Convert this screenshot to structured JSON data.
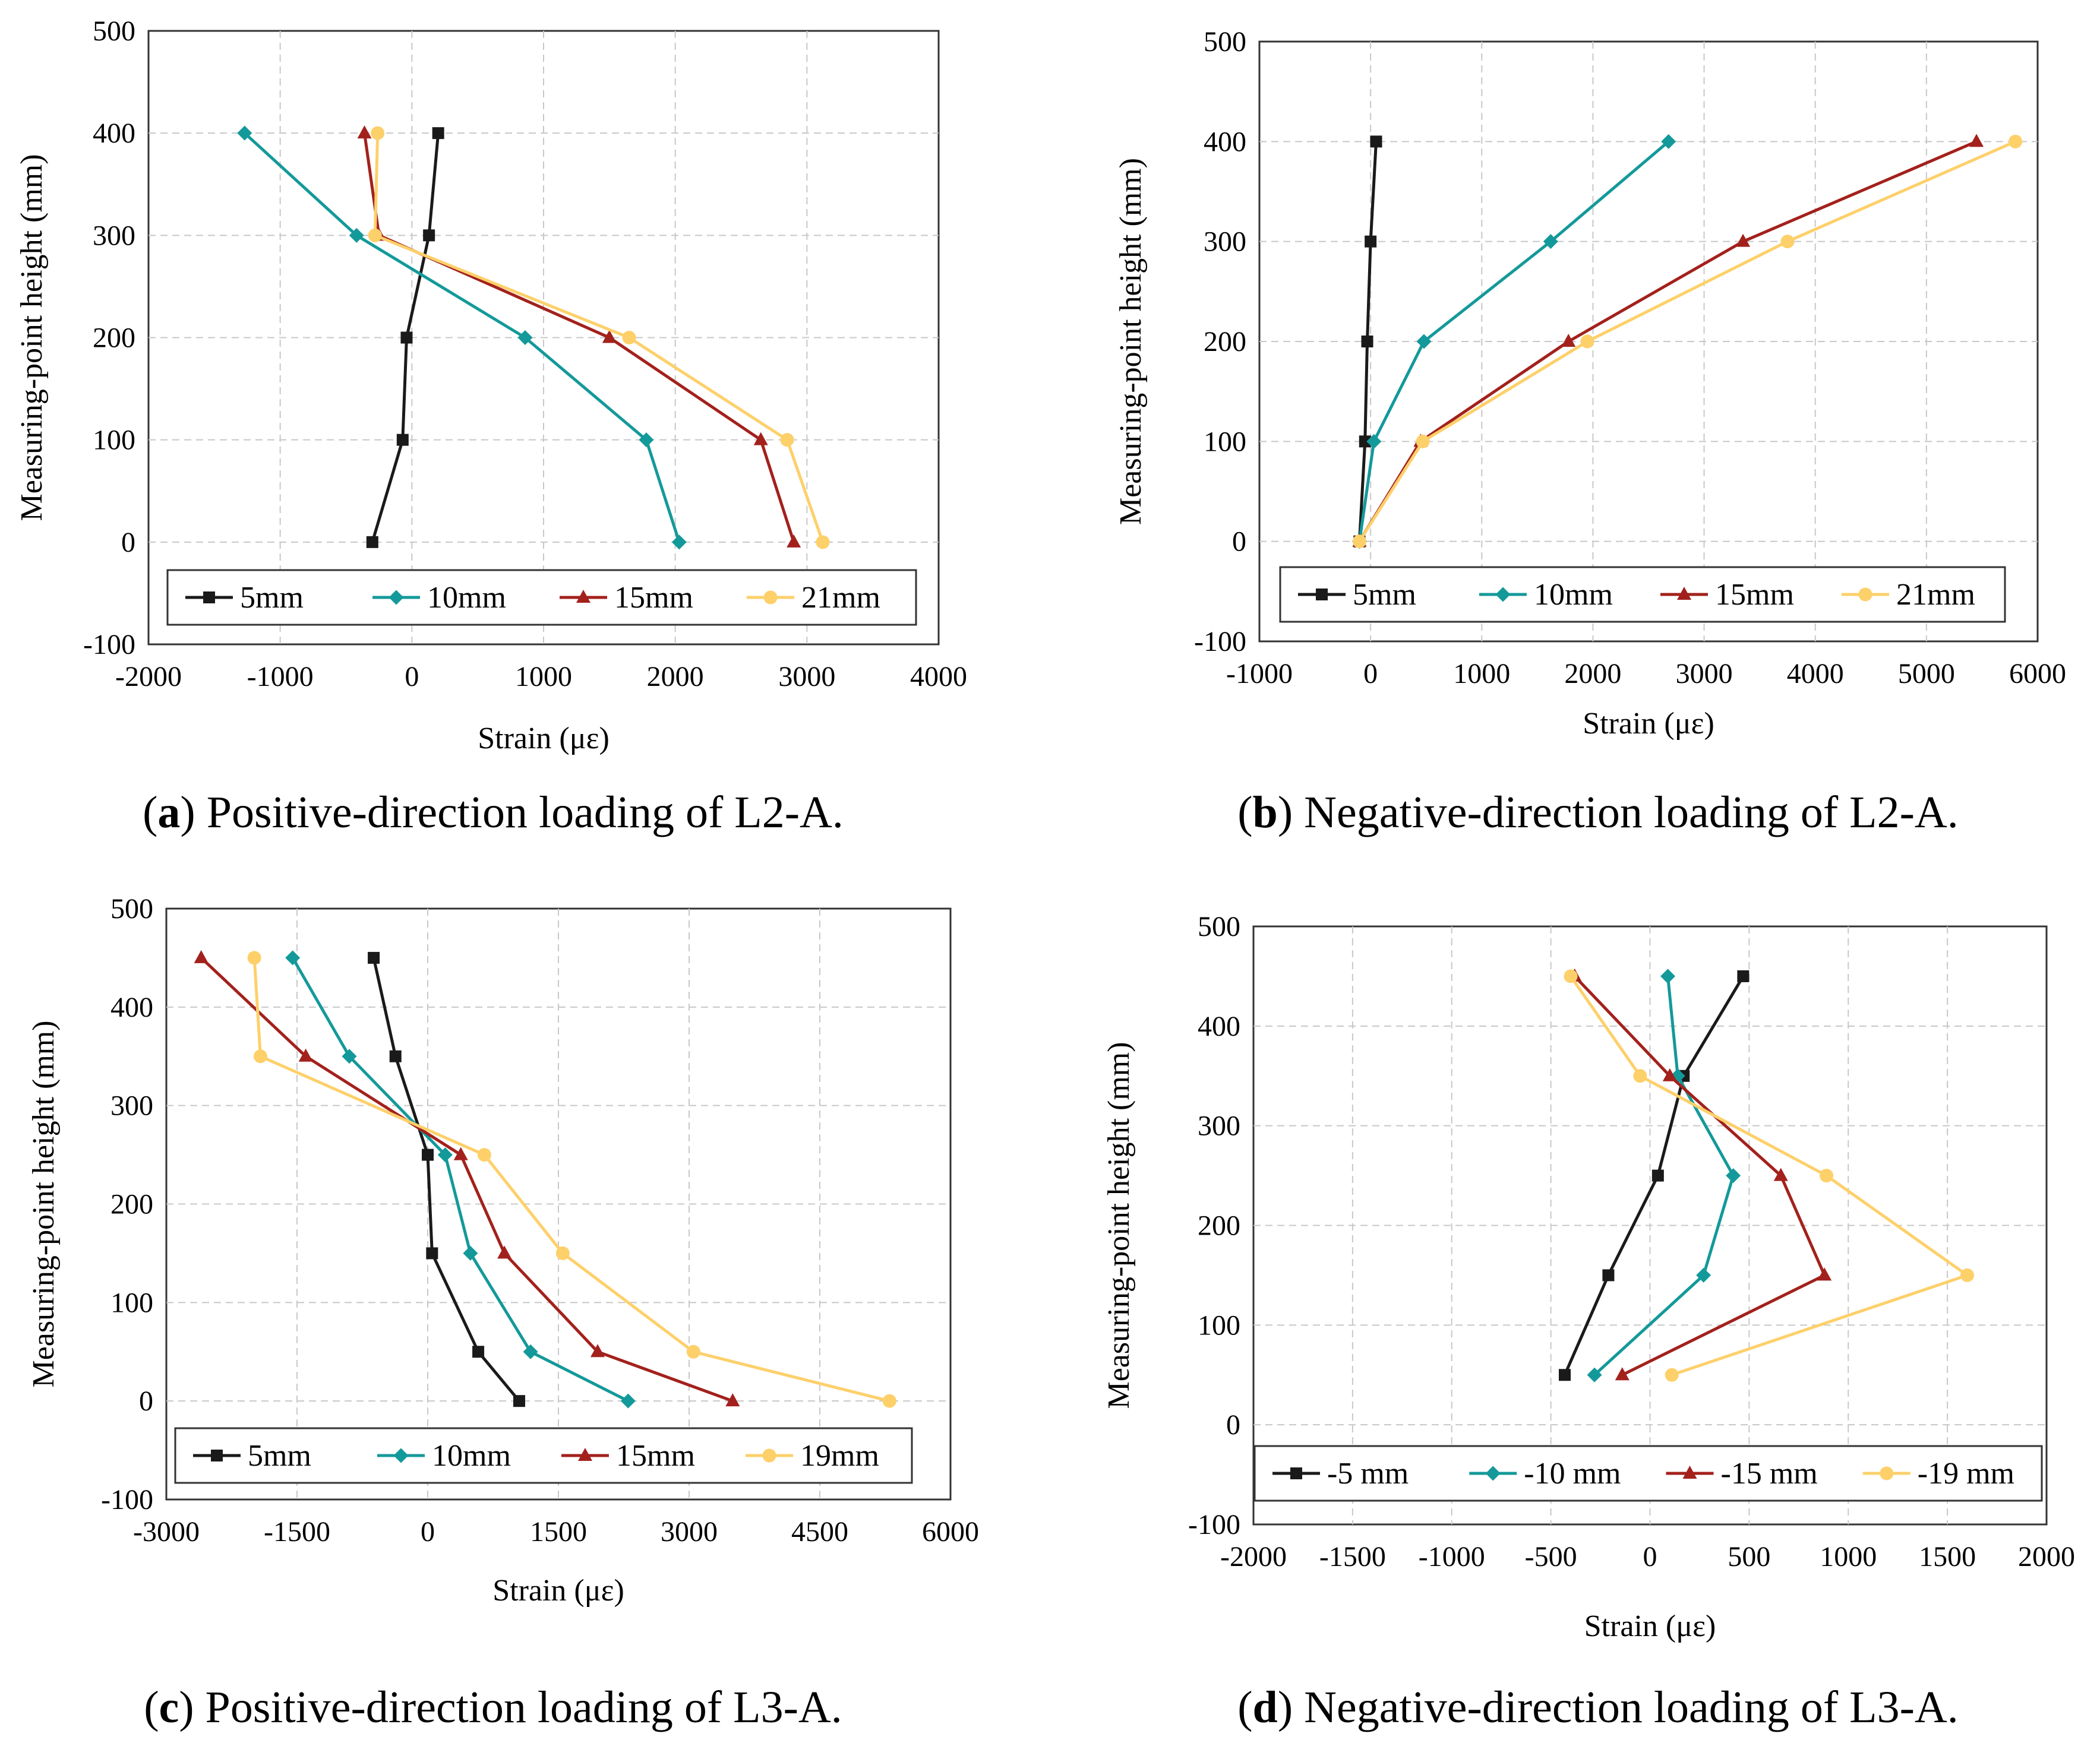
{
  "figure": {
    "panels": [
      {
        "letter": "a",
        "caption_text": "Positive-direction loading of L2-A."
      },
      {
        "letter": "b",
        "caption_text": "Negative-direction loading of L2-A."
      },
      {
        "letter": "c",
        "caption_text": "Positive-direction loading of L3-A."
      },
      {
        "letter": "d",
        "caption_text": "Negative-direction loading of L3-A."
      }
    ]
  },
  "colors": {
    "black": "#1a1a1a",
    "teal": "#14999a",
    "red": "#a3211c",
    "yellow": "#fdd06a"
  },
  "chart_data": [
    {
      "type": "line",
      "title": "",
      "xlabel": "Strain (με)",
      "ylabel": "Measuring-point height (mm)",
      "xlim": [
        -2000,
        4000
      ],
      "ylim": [
        -100,
        500
      ],
      "xticks": [
        -2000,
        -1000,
        0,
        1000,
        2000,
        3000,
        4000
      ],
      "yticks": [
        -100,
        0,
        100,
        200,
        300,
        400,
        500
      ],
      "grid": true,
      "legend_position": "bottom",
      "legend_columns": 4,
      "series": [
        {
          "name": "5mm",
          "color": "#1a1a1a",
          "marker": "square",
          "points": [
            [
              -300,
              0
            ],
            [
              -70,
              100
            ],
            [
              -40,
              200
            ],
            [
              130,
              300
            ],
            [
              200,
              400
            ]
          ]
        },
        {
          "name": "10mm",
          "color": "#14999a",
          "marker": "diamond",
          "points": [
            [
              2030,
              0
            ],
            [
              1780,
              100
            ],
            [
              860,
              200
            ],
            [
              -420,
              300
            ],
            [
              -1270,
              400
            ]
          ]
        },
        {
          "name": "15mm",
          "color": "#a3211c",
          "marker": "triangle",
          "points": [
            [
              2900,
              0
            ],
            [
              2650,
              100
            ],
            [
              1500,
              200
            ],
            [
              -250,
              300
            ],
            [
              -360,
              400
            ]
          ]
        },
        {
          "name": "21mm",
          "color": "#fdd06a",
          "marker": "circle",
          "points": [
            [
              3120,
              0
            ],
            [
              2850,
              100
            ],
            [
              1650,
              200
            ],
            [
              -280,
              300
            ],
            [
              -260,
              400
            ]
          ]
        }
      ]
    },
    {
      "type": "line",
      "title": "",
      "xlabel": "Strain (με)",
      "ylabel": "Measuring-point height (mm)",
      "xlim": [
        -1000,
        6000
      ],
      "ylim": [
        -100,
        500
      ],
      "xticks": [
        -1000,
        0,
        1000,
        2000,
        3000,
        4000,
        5000,
        6000
      ],
      "yticks": [
        -100,
        0,
        100,
        200,
        300,
        400,
        500
      ],
      "grid": true,
      "legend_position": "bottom",
      "legend_columns": 4,
      "series": [
        {
          "name": "5mm",
          "color": "#1a1a1a",
          "marker": "square",
          "points": [
            [
              -100,
              0
            ],
            [
              -50,
              100
            ],
            [
              -30,
              200
            ],
            [
              0,
              300
            ],
            [
              50,
              400
            ]
          ]
        },
        {
          "name": "10mm",
          "color": "#14999a",
          "marker": "diamond",
          "points": [
            [
              -100,
              0
            ],
            [
              30,
              100
            ],
            [
              480,
              200
            ],
            [
              1620,
              300
            ],
            [
              2680,
              400
            ]
          ]
        },
        {
          "name": "15mm",
          "color": "#a3211c",
          "marker": "triangle",
          "points": [
            [
              -100,
              0
            ],
            [
              450,
              100
            ],
            [
              1780,
              200
            ],
            [
              3350,
              300
            ],
            [
              5450,
              400
            ]
          ]
        },
        {
          "name": "21mm",
          "color": "#fdd06a",
          "marker": "circle",
          "points": [
            [
              -100,
              0
            ],
            [
              470,
              100
            ],
            [
              1950,
              200
            ],
            [
              3750,
              300
            ],
            [
              5800,
              400
            ]
          ]
        }
      ]
    },
    {
      "type": "line",
      "title": "",
      "xlabel": "Strain (με)",
      "ylabel": "Measuring-point height (mm)",
      "xlim": [
        -3000,
        6000
      ],
      "ylim": [
        -100,
        500
      ],
      "xticks": [
        -3000,
        -1500,
        0,
        1500,
        3000,
        4500,
        6000
      ],
      "yticks": [
        -100,
        0,
        100,
        200,
        300,
        400,
        500
      ],
      "grid": true,
      "legend_position": "bottom",
      "legend_columns": 4,
      "series": [
        {
          "name": "5mm",
          "color": "#1a1a1a",
          "marker": "square",
          "points": [
            [
              1050,
              0
            ],
            [
              580,
              50
            ],
            [
              50,
              150
            ],
            [
              0,
              250
            ],
            [
              -370,
              350
            ],
            [
              -620,
              450
            ]
          ]
        },
        {
          "name": "10mm",
          "color": "#14999a",
          "marker": "diamond",
          "points": [
            [
              2300,
              0
            ],
            [
              1180,
              50
            ],
            [
              490,
              150
            ],
            [
              200,
              250
            ],
            [
              -900,
              350
            ],
            [
              -1550,
              450
            ]
          ]
        },
        {
          "name": "15mm",
          "color": "#a3211c",
          "marker": "triangle",
          "points": [
            [
              3500,
              0
            ],
            [
              1950,
              50
            ],
            [
              880,
              150
            ],
            [
              380,
              250
            ],
            [
              -1400,
              350
            ],
            [
              -2600,
              450
            ]
          ]
        },
        {
          "name": "19mm",
          "color": "#fdd06a",
          "marker": "circle",
          "points": [
            [
              5300,
              0
            ],
            [
              3050,
              50
            ],
            [
              1550,
              150
            ],
            [
              650,
              250
            ],
            [
              -1920,
              350
            ],
            [
              -1990,
              450
            ]
          ]
        }
      ]
    },
    {
      "type": "line",
      "title": "",
      "xlabel": "Strain (με)",
      "ylabel": "Measuring-point height (mm)",
      "xlim": [
        -2000,
        2000
      ],
      "ylim": [
        -100,
        500
      ],
      "xticks": [
        -2000,
        -1500,
        -1000,
        -500,
        0,
        500,
        1000,
        1500,
        2000
      ],
      "yticks": [
        -100,
        0,
        100,
        200,
        300,
        400,
        500
      ],
      "grid": true,
      "legend_position": "bottom",
      "legend_columns": 4,
      "series": [
        {
          "name": "-5 mm",
          "color": "#1a1a1a",
          "marker": "square",
          "points": [
            [
              -430,
              50
            ],
            [
              -210,
              150
            ],
            [
              40,
              250
            ],
            [
              170,
              350
            ],
            [
              470,
              450
            ]
          ]
        },
        {
          "name": "-10 mm",
          "color": "#14999a",
          "marker": "diamond",
          "points": [
            [
              -280,
              50
            ],
            [
              270,
              150
            ],
            [
              420,
              250
            ],
            [
              140,
              350
            ],
            [
              90,
              450
            ]
          ]
        },
        {
          "name": "-15 mm",
          "color": "#a3211c",
          "marker": "triangle",
          "points": [
            [
              -140,
              50
            ],
            [
              880,
              150
            ],
            [
              660,
              250
            ],
            [
              100,
              350
            ],
            [
              -380,
              450
            ]
          ]
        },
        {
          "name": "-19 mm",
          "color": "#fdd06a",
          "marker": "circle",
          "points": [
            [
              110,
              50
            ],
            [
              1600,
              150
            ],
            [
              890,
              250
            ],
            [
              -50,
              350
            ],
            [
              -400,
              450
            ]
          ]
        }
      ]
    }
  ]
}
